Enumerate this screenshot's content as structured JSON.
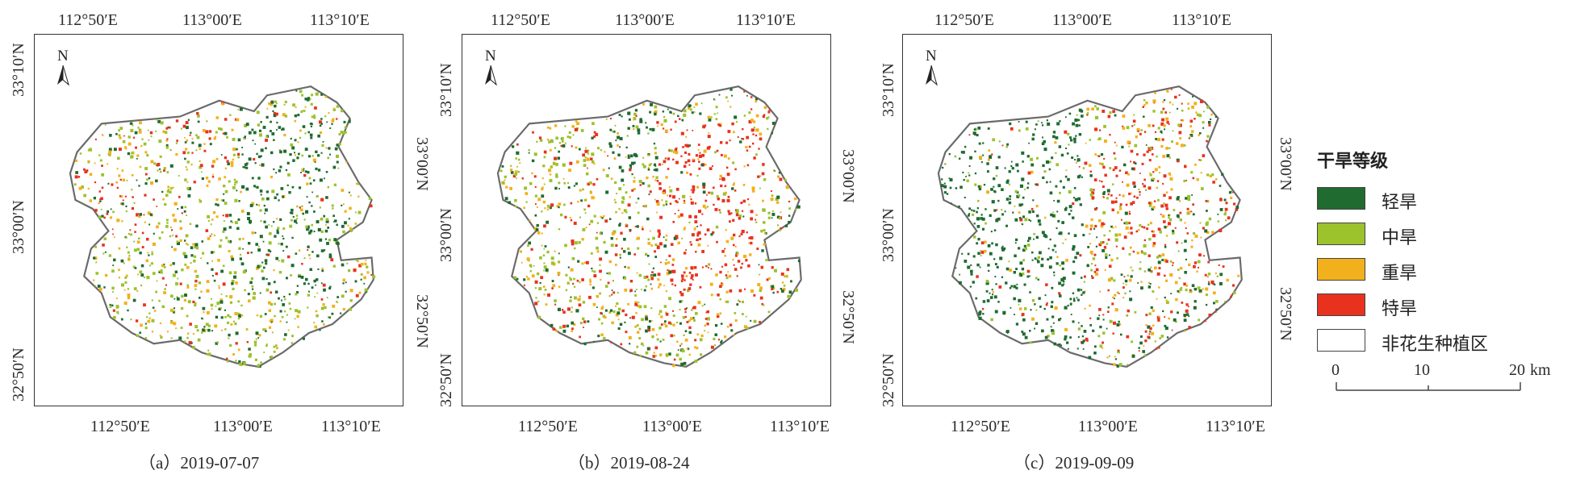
{
  "panels": [
    {
      "caption": "（a）2019-07-07",
      "top_lon": [
        "112°50′E",
        "113°00′E",
        "113°10′E"
      ],
      "bottom_lon": [
        "112°50′E",
        "113°00′E",
        "113°10′E"
      ],
      "left_lat": [
        "33°10′N",
        "33°00′N",
        "32°50′N"
      ],
      "right_lat": [
        "33°00′N",
        "32°50′N"
      ],
      "north": "N"
    },
    {
      "caption": "（b）2019-08-24",
      "top_lon": [
        "112°50′E",
        "113°00′E",
        "113°10′E"
      ],
      "bottom_lon": [
        "112°50′E",
        "113°00′E",
        "113°10′E"
      ],
      "left_lat": [
        "33°10′N",
        "33°00′N",
        "32°50′N"
      ],
      "right_lat": [
        "33°00′N",
        "32°50′N"
      ],
      "north": "N"
    },
    {
      "caption": "（c）2019-09-09",
      "top_lon": [
        "112°50′E",
        "113°00′E",
        "113°10′E"
      ],
      "bottom_lon": [
        "112°50′E",
        "113°00′E",
        "113°10′E"
      ],
      "left_lat": [
        "33°10′N",
        "33°00′N",
        "32°50′N"
      ],
      "right_lat": [
        "33°00′N",
        "32°50′N"
      ],
      "north": "N"
    }
  ],
  "legend": {
    "title": "干旱等级",
    "items": [
      {
        "label": "轻旱",
        "color": "#1f6b30"
      },
      {
        "label": "中旱",
        "color": "#9cc22c"
      },
      {
        "label": "重旱",
        "color": "#f2b11c"
      },
      {
        "label": "特旱",
        "color": "#e8321e"
      },
      {
        "label": "非花生种植区",
        "color": "#ffffff"
      }
    ]
  },
  "scale_bar": {
    "ticks": [
      "0",
      "10",
      "20"
    ],
    "unit": "km"
  },
  "drought_mix": [
    {
      "light": 0.55,
      "moderate": 0.25,
      "severe": 0.12,
      "extreme": 0.08
    },
    {
      "light": 0.22,
      "moderate": 0.2,
      "severe": 0.18,
      "extreme": 0.4
    },
    {
      "light": 0.48,
      "moderate": 0.22,
      "severe": 0.12,
      "extreme": 0.18
    }
  ]
}
